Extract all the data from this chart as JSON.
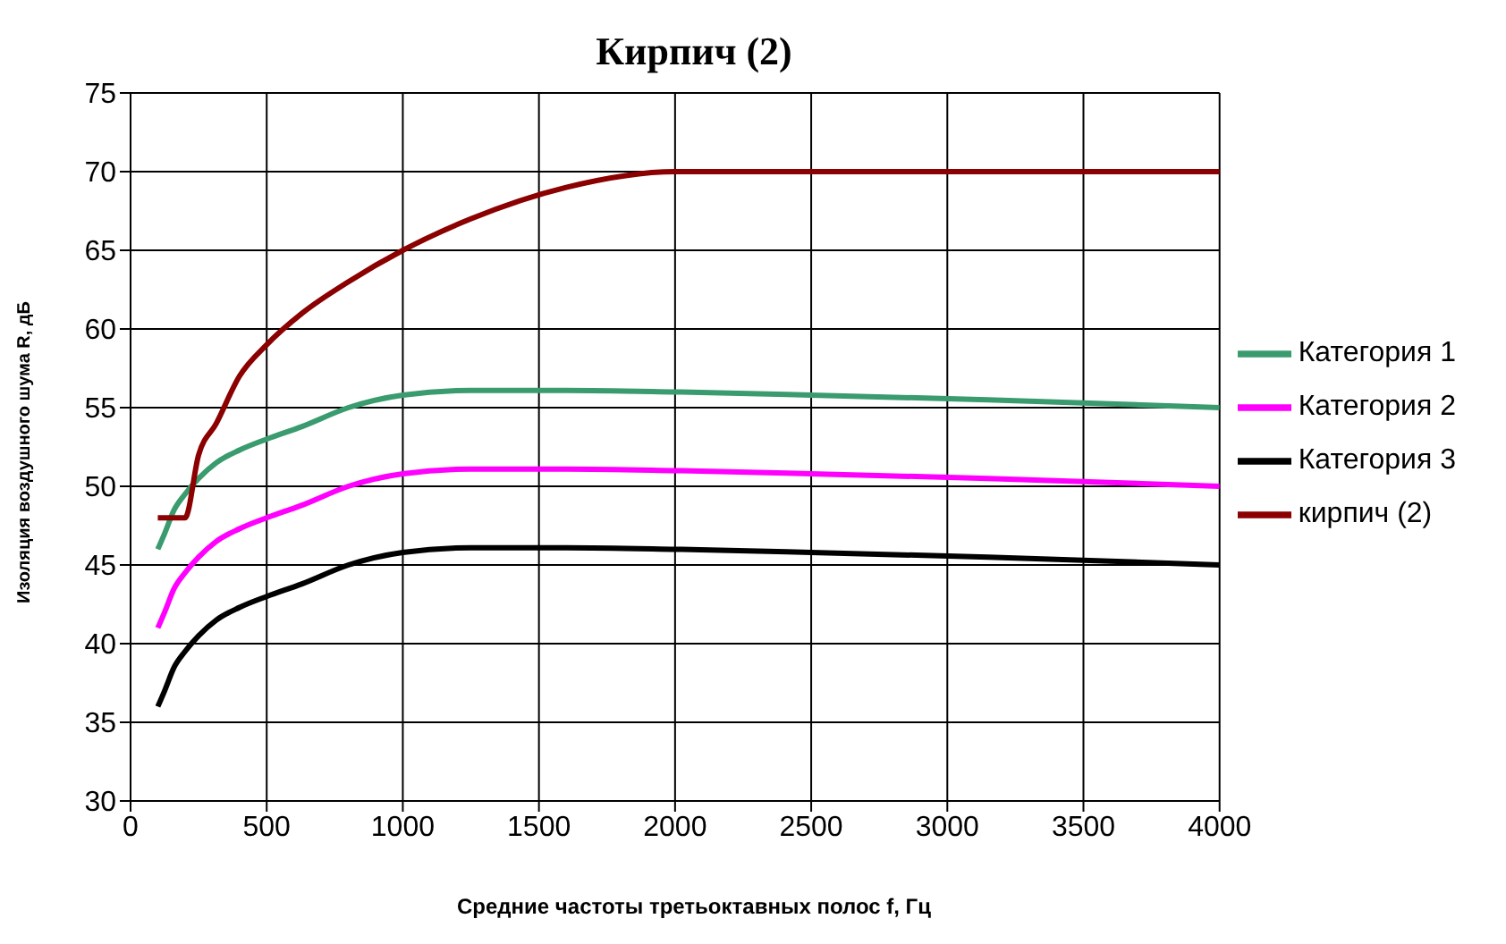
{
  "chart_data": {
    "type": "line",
    "title": "Кирпич (2)",
    "xlabel": "Средние частоты третьоктавных полос f, Гц",
    "ylabel": "Изоляция воздушного шума R, дБ",
    "x": [
      100,
      125,
      160,
      200,
      250,
      315,
      400,
      500,
      630,
      800,
      1000,
      1250,
      1600,
      2000,
      2500,
      3150,
      4000
    ],
    "series": [
      {
        "name": "Категория 1",
        "color": "#3a9b6f",
        "values": [
          46,
          47,
          48.5,
          49.5,
          50.5,
          51.5,
          52.3,
          53,
          53.8,
          55,
          55.8,
          56.1,
          56.1,
          56,
          55.8,
          55.5,
          55
        ]
      },
      {
        "name": "Категория 2",
        "color": "#ff00ff",
        "values": [
          41,
          42,
          43.5,
          44.5,
          45.5,
          46.5,
          47.3,
          48,
          48.8,
          50,
          50.8,
          51.1,
          51.1,
          51,
          50.8,
          50.5,
          50
        ]
      },
      {
        "name": "Категория 3",
        "color": "#000000",
        "values": [
          36,
          37,
          38.5,
          39.5,
          40.5,
          41.5,
          42.3,
          43,
          43.8,
          45,
          45.8,
          46.1,
          46.1,
          46,
          45.8,
          45.5,
          45
        ]
      },
      {
        "name": "кирпич (2)",
        "color": "#8b0000",
        "values": [
          48,
          48,
          48,
          48,
          52,
          54,
          57,
          59,
          61,
          63,
          65,
          67,
          69,
          70,
          70,
          70,
          70
        ]
      }
    ],
    "xlim": [
      0,
      4000
    ],
    "xticks": [
      0,
      500,
      1000,
      1500,
      2000,
      2500,
      3000,
      3500,
      4000
    ],
    "ylim": [
      30,
      75
    ],
    "yticks": [
      30,
      35,
      40,
      45,
      50,
      55,
      60,
      65,
      70,
      75
    ],
    "grid": true,
    "legend": "right",
    "marker": "none",
    "line_style": "solid"
  }
}
